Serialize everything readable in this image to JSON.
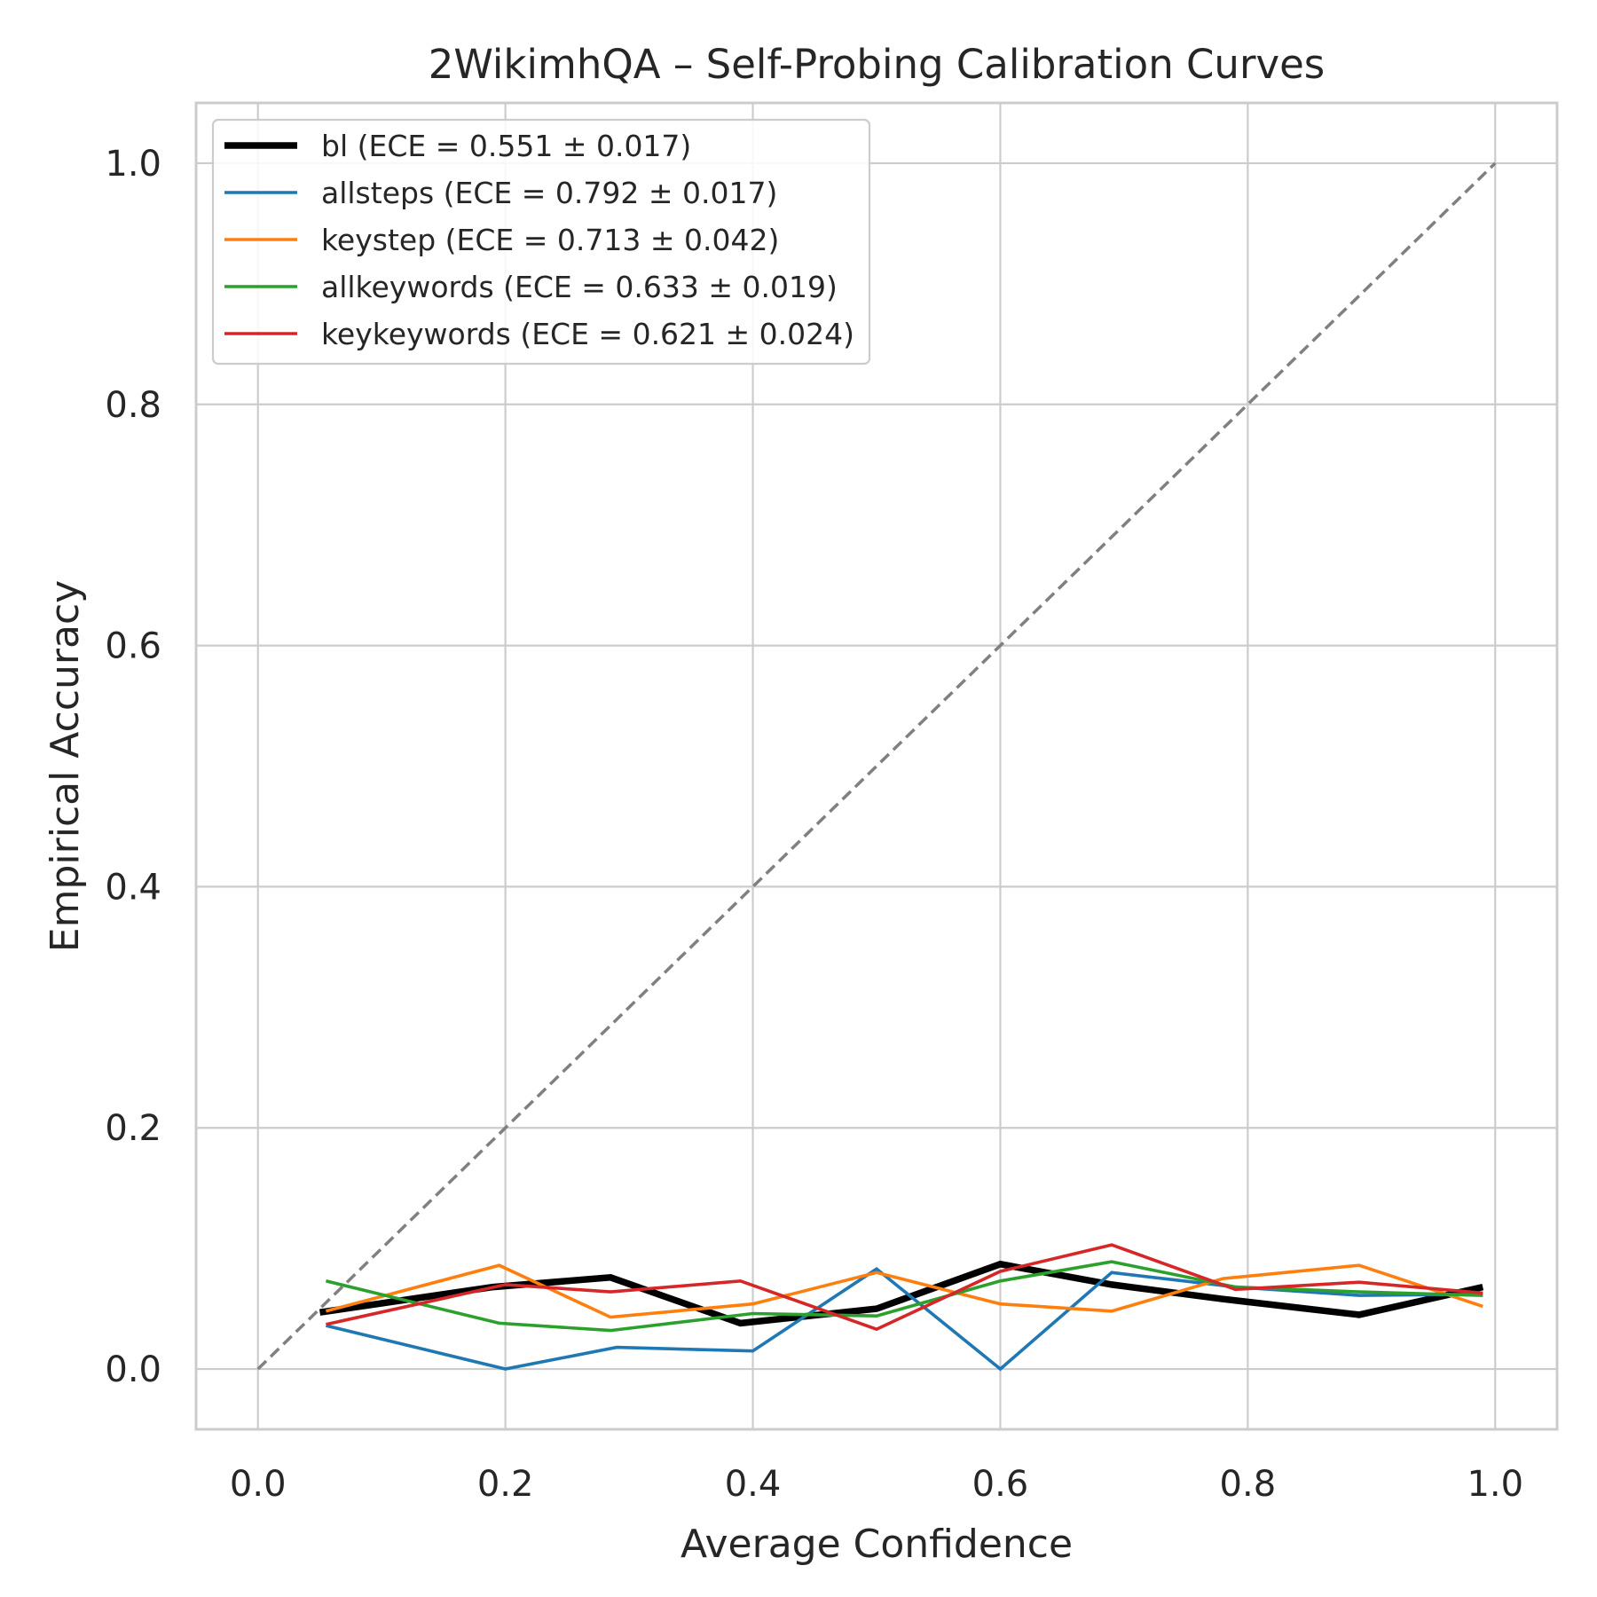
{
  "chart_data": {
    "type": "line",
    "title": "2WikimhQA – Self-Probing Calibration Curves",
    "xlabel": "Average Confidence",
    "ylabel": "Empirical Accuracy",
    "xlim": [
      -0.05,
      1.05
    ],
    "ylim": [
      -0.05,
      1.05
    ],
    "xticks": [
      "0.0",
      "0.2",
      "0.4",
      "0.6",
      "0.8",
      "1.0"
    ],
    "yticks": [
      "0.0",
      "0.2",
      "0.4",
      "0.6",
      "0.8",
      "1.0"
    ],
    "grid": true,
    "legend_position": "top-left",
    "reference_line": {
      "style": "dashed",
      "color": "#808080",
      "x": [
        0,
        1
      ],
      "y": [
        0,
        1
      ]
    },
    "series": [
      {
        "name": "bl (ECE = 0.551 ± 0.017)",
        "color": "#000000",
        "width": "thick",
        "x": [
          0.05,
          0.19,
          0.285,
          0.39,
          0.5,
          0.6,
          0.69,
          0.78,
          0.89,
          0.99
        ],
        "y": [
          0.047,
          0.068,
          0.076,
          0.038,
          0.05,
          0.087,
          0.07,
          0.058,
          0.045,
          0.068
        ]
      },
      {
        "name": "allsteps (ECE = 0.792 ± 0.017)",
        "color": "#1f77b4",
        "width": "normal",
        "x": [
          0.055,
          0.2,
          0.29,
          0.4,
          0.5,
          0.6,
          0.69,
          0.79,
          0.89,
          0.99
        ],
        "y": [
          0.036,
          0.0,
          0.018,
          0.015,
          0.083,
          0.0,
          0.08,
          0.068,
          0.061,
          0.062
        ]
      },
      {
        "name": "keystep (ECE = 0.713 ± 0.042)",
        "color": "#ff7f0e",
        "width": "normal",
        "x": [
          0.055,
          0.195,
          0.285,
          0.4,
          0.5,
          0.6,
          0.69,
          0.78,
          0.89,
          0.99
        ],
        "y": [
          0.048,
          0.086,
          0.043,
          0.054,
          0.08,
          0.054,
          0.048,
          0.075,
          0.086,
          0.052
        ]
      },
      {
        "name": "allkeywords (ECE = 0.633 ± 0.019)",
        "color": "#2ca02c",
        "width": "normal",
        "x": [
          0.055,
          0.195,
          0.285,
          0.4,
          0.5,
          0.6,
          0.69,
          0.79,
          0.89,
          0.99
        ],
        "y": [
          0.073,
          0.038,
          0.032,
          0.046,
          0.044,
          0.073,
          0.089,
          0.068,
          0.064,
          0.061
        ]
      },
      {
        "name": "keykeywords (ECE = 0.621 ± 0.024)",
        "color": "#d62728",
        "width": "normal",
        "x": [
          0.055,
          0.2,
          0.285,
          0.39,
          0.5,
          0.6,
          0.69,
          0.79,
          0.89,
          0.99
        ],
        "y": [
          0.037,
          0.07,
          0.064,
          0.073,
          0.033,
          0.081,
          0.103,
          0.066,
          0.072,
          0.063
        ]
      }
    ]
  }
}
